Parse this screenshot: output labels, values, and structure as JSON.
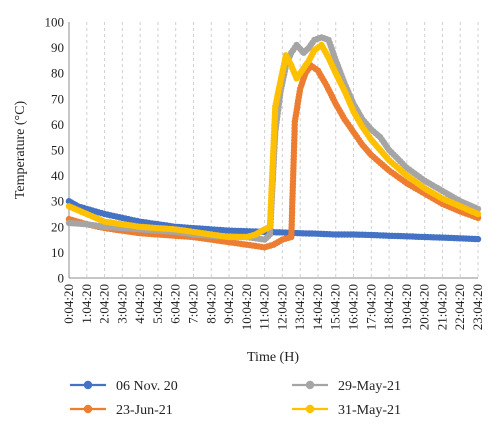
{
  "chart_data": {
    "type": "line",
    "title": "",
    "xlabel": "Time (H)",
    "ylabel": "Temperature (°C)",
    "ylim": [
      0,
      100
    ],
    "yticks": [
      0,
      10,
      20,
      30,
      40,
      50,
      60,
      70,
      80,
      90,
      100
    ],
    "x_range": [
      0,
      23
    ],
    "x_ticks": [
      {
        "x": 0,
        "label": "0:04:20"
      },
      {
        "x": 1,
        "label": "1:04:20"
      },
      {
        "x": 2,
        "label": "2:04:20"
      },
      {
        "x": 3,
        "label": "3:04:20"
      },
      {
        "x": 4,
        "label": "4:04:20"
      },
      {
        "x": 5,
        "label": "5:04:20"
      },
      {
        "x": 6,
        "label": "6:04:20"
      },
      {
        "x": 7,
        "label": "7:04:20"
      },
      {
        "x": 8,
        "label": "8:04:20"
      },
      {
        "x": 9,
        "label": "9:04:20"
      },
      {
        "x": 10,
        "label": "10:04:20"
      },
      {
        "x": 11,
        "label": "11:04:20"
      },
      {
        "x": 12,
        "label": "12:04:20"
      },
      {
        "x": 13,
        "label": "13:04:20"
      },
      {
        "x": 14,
        "label": "14:04:20"
      },
      {
        "x": 15,
        "label": "15:04:20"
      },
      {
        "x": 16,
        "label": "16:04:20"
      },
      {
        "x": 17,
        "label": "17:04:20"
      },
      {
        "x": 18,
        "label": "18:04:20"
      },
      {
        "x": 19,
        "label": "19:04:20"
      },
      {
        "x": 20,
        "label": "20:04:20"
      },
      {
        "x": 21,
        "label": "21:04:20"
      },
      {
        "x": 22,
        "label": "22:04:20"
      },
      {
        "x": 23,
        "label": "23:04:20"
      }
    ],
    "grid": "vertical-dashed",
    "legend_position": "bottom",
    "series": [
      {
        "name": "06 Nov. 20",
        "color": "#4472C4",
        "points": [
          [
            0,
            30
          ],
          [
            0.5,
            28
          ],
          [
            1,
            27
          ],
          [
            2,
            25
          ],
          [
            3,
            23.5
          ],
          [
            4,
            22
          ],
          [
            5,
            21
          ],
          [
            6,
            20
          ],
          [
            7,
            19.5
          ],
          [
            8,
            19
          ],
          [
            9,
            18.5
          ],
          [
            10,
            18.3
          ],
          [
            11,
            18
          ],
          [
            12,
            17.8
          ],
          [
            13,
            17.5
          ],
          [
            14,
            17.3
          ],
          [
            15,
            17
          ],
          [
            16,
            17
          ],
          [
            17,
            16.8
          ],
          [
            18,
            16.5
          ],
          [
            19,
            16.3
          ],
          [
            20,
            16
          ],
          [
            21,
            15.8
          ],
          [
            22,
            15.5
          ],
          [
            23,
            15.2
          ]
        ]
      },
      {
        "name": "23-Jun-21",
        "color": "#ED7D31",
        "points": [
          [
            0,
            23
          ],
          [
            1,
            21
          ],
          [
            2,
            19.5
          ],
          [
            3,
            18.5
          ],
          [
            4,
            17.5
          ],
          [
            5,
            17
          ],
          [
            6,
            16.5
          ],
          [
            7,
            16
          ],
          [
            8,
            15
          ],
          [
            9,
            14
          ],
          [
            10,
            13
          ],
          [
            11,
            12
          ],
          [
            11.5,
            13
          ],
          [
            12,
            15
          ],
          [
            12.5,
            16
          ],
          [
            12.7,
            61
          ],
          [
            13,
            74
          ],
          [
            13.3,
            80
          ],
          [
            13.6,
            83
          ],
          [
            14,
            81
          ],
          [
            14.5,
            75
          ],
          [
            15,
            68
          ],
          [
            15.5,
            62
          ],
          [
            16,
            57
          ],
          [
            16.5,
            52
          ],
          [
            17,
            48
          ],
          [
            17.5,
            45
          ],
          [
            18,
            42
          ],
          [
            19,
            37
          ],
          [
            20,
            33
          ],
          [
            21,
            29
          ],
          [
            22,
            26
          ],
          [
            23,
            23.5
          ]
        ]
      },
      {
        "name": "29-May-21",
        "color": "#A5A5A5",
        "points": [
          [
            0,
            21.5
          ],
          [
            1,
            21
          ],
          [
            2,
            20
          ],
          [
            3,
            19.5
          ],
          [
            4,
            19
          ],
          [
            5,
            18.5
          ],
          [
            6,
            18
          ],
          [
            7,
            17
          ],
          [
            8,
            16.5
          ],
          [
            9,
            16
          ],
          [
            10,
            16
          ],
          [
            10.5,
            15.5
          ],
          [
            11,
            15
          ],
          [
            11.3,
            17
          ],
          [
            11.6,
            57
          ],
          [
            11.9,
            73
          ],
          [
            12.2,
            83
          ],
          [
            12.5,
            88
          ],
          [
            12.8,
            91
          ],
          [
            13.2,
            88
          ],
          [
            13.5,
            90
          ],
          [
            13.8,
            93
          ],
          [
            14.2,
            94
          ],
          [
            14.6,
            93
          ],
          [
            15,
            85
          ],
          [
            15.5,
            76
          ],
          [
            16,
            68
          ],
          [
            16.5,
            62
          ],
          [
            17,
            58
          ],
          [
            17.5,
            55
          ],
          [
            18,
            50
          ],
          [
            19,
            43
          ],
          [
            20,
            38
          ],
          [
            21,
            34
          ],
          [
            22,
            30
          ],
          [
            23,
            27
          ]
        ]
      },
      {
        "name": "31-May-21",
        "color": "#FFC000",
        "points": [
          [
            0,
            28
          ],
          [
            1,
            25
          ],
          [
            2,
            22
          ],
          [
            3,
            21
          ],
          [
            4,
            20
          ],
          [
            5,
            19.5
          ],
          [
            6,
            19
          ],
          [
            7,
            18
          ],
          [
            8,
            17
          ],
          [
            9,
            16
          ],
          [
            10,
            16
          ],
          [
            10.5,
            17
          ],
          [
            11,
            19
          ],
          [
            11.3,
            20
          ],
          [
            11.6,
            67
          ],
          [
            11.9,
            77
          ],
          [
            12.2,
            87
          ],
          [
            12.5,
            83
          ],
          [
            12.8,
            78
          ],
          [
            13.2,
            82
          ],
          [
            13.5,
            85
          ],
          [
            13.8,
            89
          ],
          [
            14.2,
            91
          ],
          [
            14.6,
            86
          ],
          [
            15,
            80
          ],
          [
            15.5,
            73
          ],
          [
            16,
            65
          ],
          [
            16.5,
            59
          ],
          [
            17,
            54
          ],
          [
            17.5,
            50
          ],
          [
            18,
            46
          ],
          [
            19,
            40
          ],
          [
            20,
            35
          ],
          [
            21,
            31
          ],
          [
            22,
            28
          ],
          [
            23,
            25
          ]
        ]
      }
    ]
  }
}
